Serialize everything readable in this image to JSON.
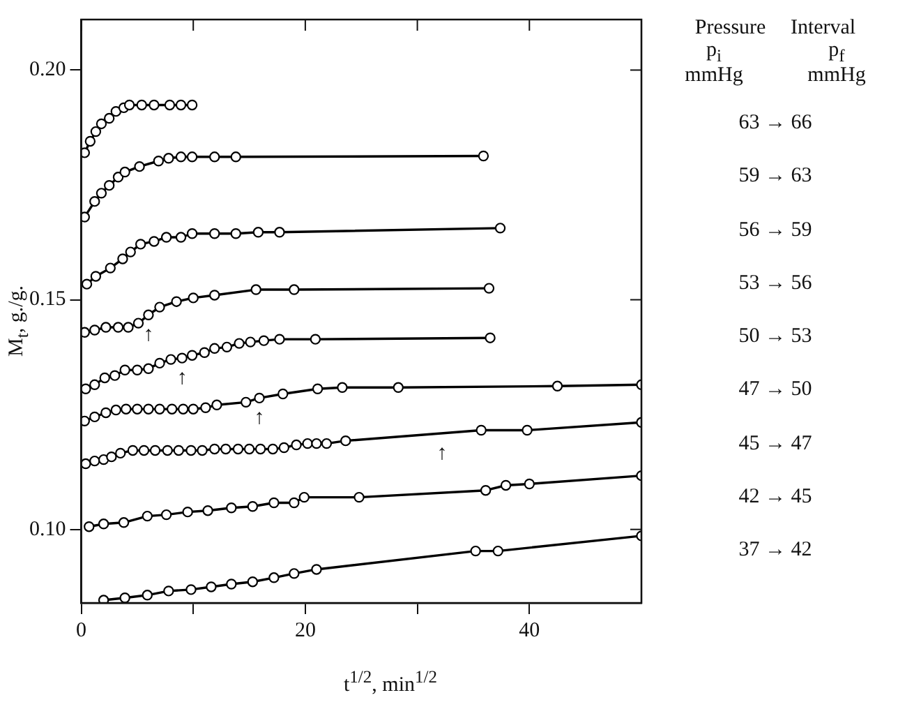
{
  "chart_data": {
    "type": "line",
    "xlabel": "t$^{1/2}$, min$^{1/2}$",
    "ylabel": "M$_{t}$, g./g.",
    "legend_title": "Pressure Interval",
    "legend": "right",
    "marker": "circle",
    "line_style": "solid",
    "grid": false,
    "xlim": [
      0,
      50
    ],
    "xticks": [
      0,
      {
        "value": 10,
        "label": null
      },
      20,
      {
        "value": 30,
        "label": null
      },
      40
    ],
    "ylim": [
      0.084,
      0.211
    ],
    "yticks": [
      {
        "value": 0.1,
        "label": "0.10"
      },
      {
        "value": 0.15,
        "label": "0.15"
      },
      {
        "value": 0.2,
        "label": "0.20"
      }
    ],
    "annotations": [
      "p$_{i}$ mmHg",
      "p$_{f}$ mmHg",
      {
        "text": "↑",
        "x": 6.0,
        "y": 0.1467
      },
      {
        "text": "↑",
        "x": 9.0,
        "y": 0.1373
      },
      {
        "text": "↑",
        "x": 15.9,
        "y": 0.1286
      },
      {
        "text": "↑",
        "x": 32.2,
        "y": 0.1209
      }
    ],
    "series": [
      {
        "name": "63 → 66",
        "color": "#000000",
        "x": [
          0.3,
          0.8,
          1.3,
          1.8,
          2.5,
          3.1,
          3.8,
          4.3,
          5.4,
          6.5,
          7.9,
          8.9,
          9.9
        ],
        "values": [
          0.182,
          0.1845,
          0.1866,
          0.1883,
          0.1895,
          0.191,
          0.1918,
          0.1924,
          0.1924,
          0.1924,
          0.1924,
          0.1924,
          0.1924
        ]
      },
      {
        "name": "59 → 63",
        "color": "#000000",
        "x": [
          0.3,
          1.2,
          1.8,
          2.5,
          3.3,
          3.9,
          5.2,
          6.9,
          7.8,
          8.9,
          9.9,
          11.9,
          13.8,
          35.9
        ],
        "values": [
          0.168,
          0.1714,
          0.1732,
          0.1749,
          0.1767,
          0.1778,
          0.179,
          0.1802,
          0.1808,
          0.1811,
          0.1811,
          0.1811,
          0.1811,
          0.1813
        ]
      },
      {
        "name": "56 → 59",
        "color": "#000000",
        "x": [
          0.5,
          1.3,
          2.6,
          3.7,
          4.4,
          5.3,
          6.5,
          7.6,
          8.9,
          9.9,
          11.9,
          13.8,
          15.8,
          17.7,
          37.4
        ],
        "values": [
          0.1534,
          0.1551,
          0.1569,
          0.1589,
          0.1604,
          0.1621,
          0.1627,
          0.1636,
          0.1636,
          0.1644,
          0.1644,
          0.1644,
          0.1647,
          0.1647,
          0.1656
        ]
      },
      {
        "name": "53 → 56",
        "color": "#000000",
        "x": [
          0.3,
          1.2,
          2.2,
          3.3,
          4.2,
          5.1,
          6.0,
          7.0,
          8.5,
          10.0,
          11.9,
          15.6,
          19.0,
          36.4
        ],
        "values": [
          0.1429,
          0.1434,
          0.144,
          0.144,
          0.144,
          0.1449,
          0.1467,
          0.1484,
          0.1496,
          0.1504,
          0.151,
          0.1522,
          0.1522,
          0.1525
        ]
      },
      {
        "name": "50 → 53",
        "color": "#000000",
        "x": [
          0.4,
          1.2,
          2.1,
          3.0,
          3.9,
          5.0,
          6.0,
          7.0,
          8.0,
          9.0,
          9.9,
          11.0,
          11.9,
          13.0,
          14.1,
          15.1,
          16.3,
          17.7,
          20.9,
          36.5
        ],
        "values": [
          0.1306,
          0.1315,
          0.133,
          0.1335,
          0.1347,
          0.1347,
          0.135,
          0.1362,
          0.137,
          0.1373,
          0.1379,
          0.1385,
          0.1394,
          0.1397,
          0.1405,
          0.1408,
          0.1411,
          0.1414,
          0.1414,
          0.1417
        ]
      },
      {
        "name": "47 → 50",
        "color": "#000000",
        "x": [
          0.3,
          1.2,
          2.2,
          3.1,
          4.0,
          5.0,
          6.0,
          7.0,
          8.1,
          9.1,
          10.0,
          11.1,
          12.1,
          14.7,
          15.9,
          18.0,
          21.1,
          23.3,
          28.3,
          42.5,
          50
        ],
        "values": [
          0.1236,
          0.1245,
          0.1254,
          0.126,
          0.1262,
          0.1262,
          0.1262,
          0.1262,
          0.1262,
          0.1262,
          0.1262,
          0.1265,
          0.1271,
          0.1277,
          0.1286,
          0.1295,
          0.1306,
          0.1309,
          0.1309,
          0.1312,
          0.1315
        ]
      },
      {
        "name": "45 → 47",
        "color": "#000000",
        "x": [
          0.4,
          1.2,
          2.0,
          2.7,
          3.5,
          4.6,
          5.6,
          6.6,
          7.7,
          8.7,
          9.8,
          10.8,
          11.9,
          12.9,
          14.0,
          15.0,
          16.0,
          17.1,
          18.1,
          19.2,
          20.2,
          21.0,
          21.9,
          23.6,
          35.7,
          39.8,
          50
        ],
        "values": [
          0.1143,
          0.1149,
          0.1152,
          0.1158,
          0.1166,
          0.1172,
          0.1172,
          0.1172,
          0.1172,
          0.1172,
          0.1172,
          0.1172,
          0.1175,
          0.1175,
          0.1175,
          0.1175,
          0.1175,
          0.1175,
          0.1178,
          0.1184,
          0.1187,
          0.1187,
          0.1187,
          0.1193,
          0.1216,
          0.1216,
          0.1233
        ]
      },
      {
        "name": "42 → 45",
        "color": "#000000",
        "x": [
          0.7,
          2.0,
          3.8,
          5.9,
          7.6,
          9.5,
          11.3,
          13.4,
          15.3,
          17.2,
          19.0,
          19.9,
          24.8,
          36.1,
          37.9,
          40.0,
          50
        ],
        "values": [
          0.1006,
          0.1012,
          0.1015,
          0.1029,
          0.1032,
          0.1038,
          0.1041,
          0.1047,
          0.105,
          0.1058,
          0.1058,
          0.107,
          0.107,
          0.1085,
          0.1096,
          0.1099,
          0.1117
        ]
      },
      {
        "name": "37 → 42",
        "color": "#000000",
        "x": [
          2.0,
          3.9,
          5.9,
          7.8,
          9.8,
          11.6,
          13.4,
          15.3,
          17.2,
          19.0,
          21.0,
          35.2,
          37.2,
          50
        ],
        "values": [
          0.0846,
          0.0851,
          0.0857,
          0.0866,
          0.0869,
          0.0875,
          0.0881,
          0.0886,
          0.0895,
          0.0904,
          0.0913,
          0.0953,
          0.0953,
          0.0986
        ]
      }
    ]
  }
}
